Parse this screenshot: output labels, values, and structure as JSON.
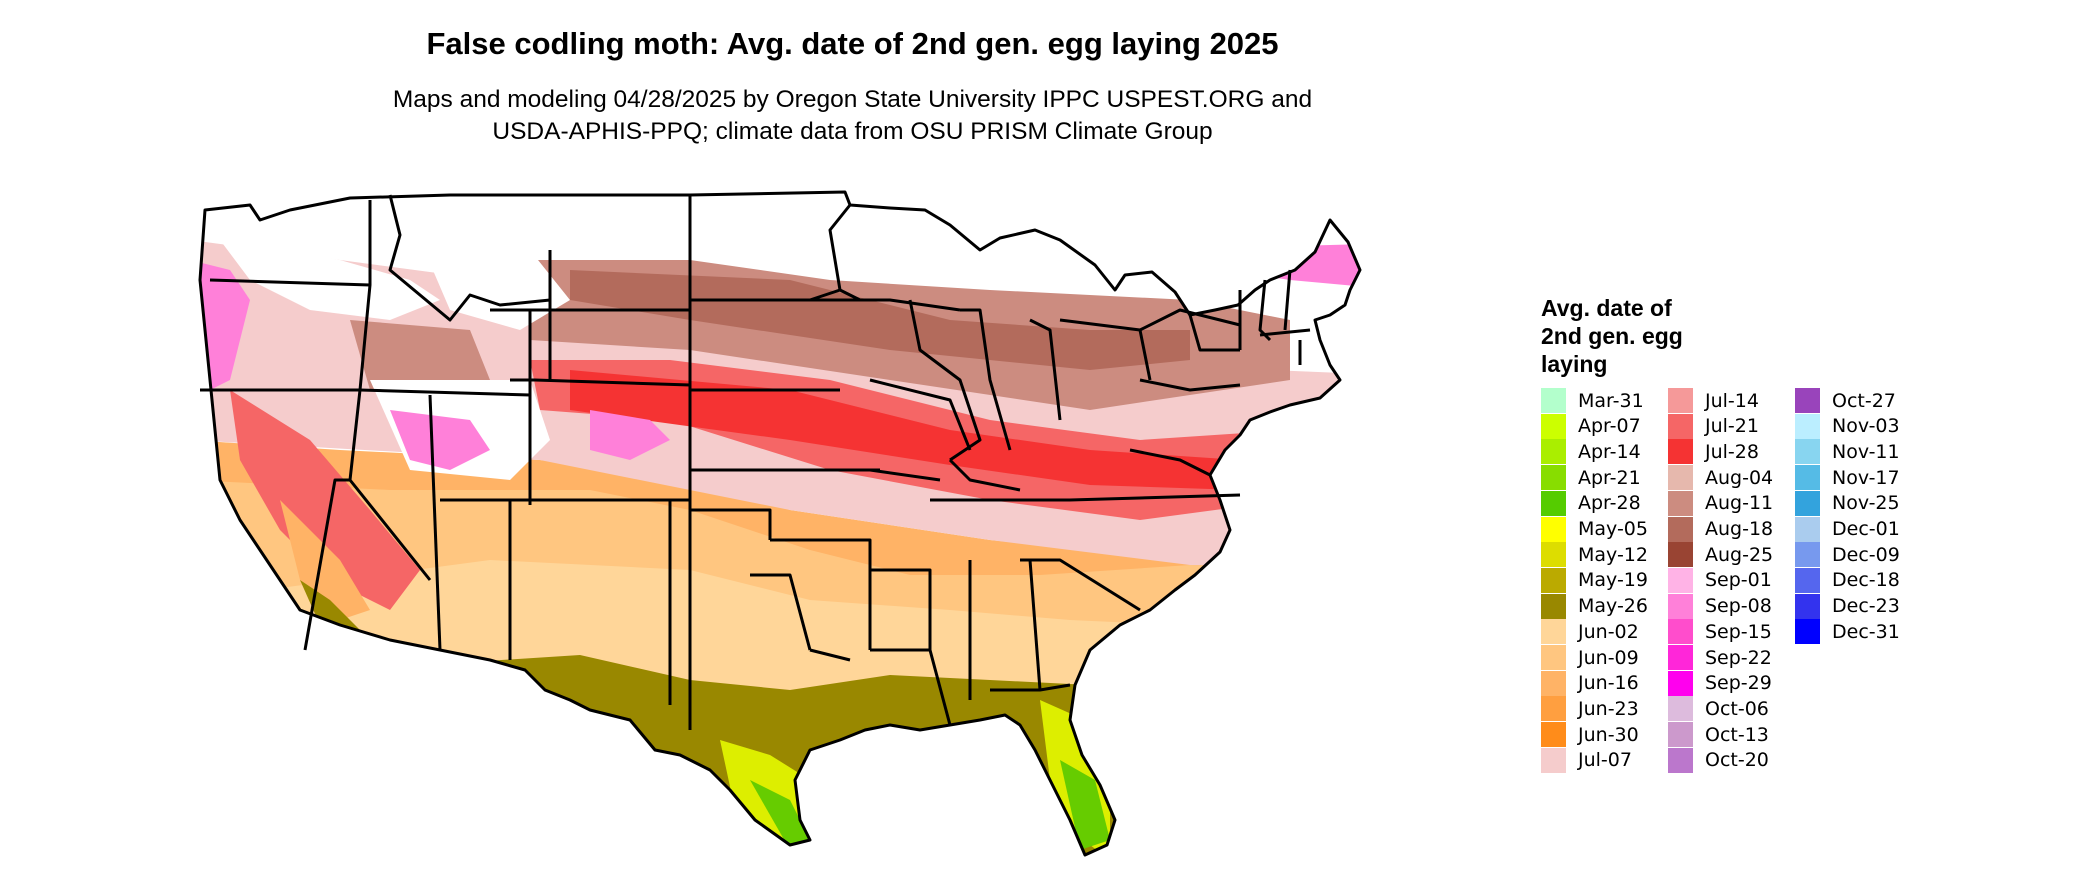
{
  "title": "False codling moth: Avg. date of 2nd gen. egg laying 2025",
  "subtitle": {
    "line1": "Maps and modeling 04/28/2025 by Oregon State University IPPC USPEST.ORG and",
    "line2": "USDA-APHIS-PPQ; climate data from OSU PRISM Climate Group"
  },
  "legend": {
    "title_lines": [
      "Avg. date of",
      "2nd gen. egg",
      "laying"
    ],
    "items": [
      {
        "label": "Mar-31",
        "color": "#b3ffcc"
      },
      {
        "label": "Apr-07",
        "color": "#ccff00"
      },
      {
        "label": "Apr-14",
        "color": "#aaee00"
      },
      {
        "label": "Apr-21",
        "color": "#88dd00"
      },
      {
        "label": "Apr-28",
        "color": "#55cc00"
      },
      {
        "label": "May-05",
        "color": "#ffff00"
      },
      {
        "label": "May-12",
        "color": "#dddd00"
      },
      {
        "label": "May-19",
        "color": "#bbaa00"
      },
      {
        "label": "May-26",
        "color": "#998800"
      },
      {
        "label": "Jun-02",
        "color": "#ffd699"
      },
      {
        "label": "Jun-09",
        "color": "#ffc680"
      },
      {
        "label": "Jun-16",
        "color": "#ffb366"
      },
      {
        "label": "Jun-23",
        "color": "#ff9f40"
      },
      {
        "label": "Jun-30",
        "color": "#ff8c1a"
      },
      {
        "label": "Jul-07",
        "color": "#f5cccc"
      },
      {
        "label": "Jul-14",
        "color": "#f59999"
      },
      {
        "label": "Jul-21",
        "color": "#f56666"
      },
      {
        "label": "Jul-28",
        "color": "#f53333"
      },
      {
        "label": "Aug-04",
        "color": "#e6b8ad"
      },
      {
        "label": "Aug-11",
        "color": "#cc8c80"
      },
      {
        "label": "Aug-18",
        "color": "#b36b5c"
      },
      {
        "label": "Aug-25",
        "color": "#994433"
      },
      {
        "label": "Sep-01",
        "color": "#ffb3e6"
      },
      {
        "label": "Sep-08",
        "color": "#ff80d9"
      },
      {
        "label": "Sep-15",
        "color": "#ff4dcc"
      },
      {
        "label": "Sep-22",
        "color": "#ff26d9"
      },
      {
        "label": "Sep-29",
        "color": "#ff00ee"
      },
      {
        "label": "Oct-06",
        "color": "#ddbbdd"
      },
      {
        "label": "Oct-13",
        "color": "#cc99cc"
      },
      {
        "label": "Oct-20",
        "color": "#bb77cc"
      },
      {
        "label": "Oct-27",
        "color": "#9944bb"
      },
      {
        "label": "Nov-03",
        "color": "#bbeeff"
      },
      {
        "label": "Nov-11",
        "color": "#88d5f0"
      },
      {
        "label": "Nov-17",
        "color": "#55bbe6"
      },
      {
        "label": "Nov-25",
        "color": "#33a3dd"
      },
      {
        "label": "Dec-01",
        "color": "#aaccee"
      },
      {
        "label": "Dec-09",
        "color": "#7799ee"
      },
      {
        "label": "Dec-18",
        "color": "#5566ee"
      },
      {
        "label": "Dec-23",
        "color": "#3333ee"
      },
      {
        "label": "Dec-31",
        "color": "#0000ff"
      }
    ]
  }
}
